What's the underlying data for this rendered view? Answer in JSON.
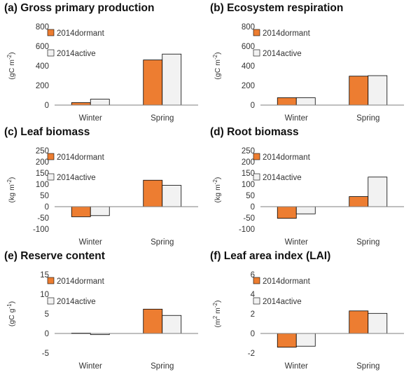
{
  "colors": {
    "dormant": "#ED7D31",
    "active": "#F2F2F2",
    "bar_stroke": "#000000",
    "axis": "#7F7F7F"
  },
  "chart_data": [
    {
      "id": "a",
      "type": "bar",
      "title": "(a) Gross primary production",
      "ylabel_main": "(gC m",
      "ylabel_sup": "-2",
      "ylabel_end": ")",
      "categories": [
        "Winter",
        "Spring"
      ],
      "series": [
        {
          "name": "2014dormant",
          "values": [
            25,
            460
          ]
        },
        {
          "name": "2014active",
          "values": [
            60,
            520
          ]
        }
      ],
      "ylim": [
        0,
        800
      ],
      "yticks": [
        0,
        200,
        400,
        600,
        800
      ],
      "grid": false,
      "legend": "top-left"
    },
    {
      "id": "b",
      "type": "bar",
      "title": "(b) Ecosystem respiration",
      "ylabel_main": "(gC m",
      "ylabel_sup": "-2",
      "ylabel_end": ")",
      "categories": [
        "Winter",
        "Spring"
      ],
      "series": [
        {
          "name": "2014dormant",
          "values": [
            75,
            295
          ]
        },
        {
          "name": "2014active",
          "values": [
            75,
            300
          ]
        }
      ],
      "ylim": [
        0,
        800
      ],
      "yticks": [
        0,
        200,
        400,
        600,
        800
      ],
      "grid": false,
      "legend": "top-left"
    },
    {
      "id": "c",
      "type": "bar",
      "title": "(c) Leaf biomass",
      "ylabel_main": "(kg m",
      "ylabel_sup": "-2",
      "ylabel_end": ")",
      "categories": [
        "Winter",
        "Spring"
      ],
      "series": [
        {
          "name": "2014dormant",
          "values": [
            -45,
            118
          ]
        },
        {
          "name": "2014active",
          "values": [
            -40,
            95
          ]
        }
      ],
      "ylim": [
        -100,
        250
      ],
      "yticks": [
        -100,
        -50,
        0,
        50,
        100,
        150,
        200,
        250
      ],
      "grid": false,
      "legend": "top-left"
    },
    {
      "id": "d",
      "type": "bar",
      "title": "(d) Root biomass",
      "ylabel_main": "(kg m",
      "ylabel_sup": "-2",
      "ylabel_end": ")",
      "categories": [
        "Winter",
        "Spring"
      ],
      "series": [
        {
          "name": "2014dormant",
          "values": [
            -52,
            45
          ]
        },
        {
          "name": "2014active",
          "values": [
            -32,
            132
          ]
        }
      ],
      "ylim": [
        -100,
        250
      ],
      "yticks": [
        -100,
        -50,
        0,
        50,
        100,
        150,
        200,
        250
      ],
      "grid": false,
      "legend": "top-left"
    },
    {
      "id": "e",
      "type": "bar",
      "title": "(e) Reserve content",
      "ylabel_main": "(gC g",
      "ylabel_sup": "-1",
      "ylabel_end": ")",
      "categories": [
        "Winter",
        "Spring"
      ],
      "series": [
        {
          "name": "2014dormant",
          "values": [
            0.1,
            6.2
          ]
        },
        {
          "name": "2014active",
          "values": [
            -0.3,
            4.6
          ]
        }
      ],
      "ylim": [
        -5,
        15
      ],
      "yticks": [
        -5,
        0,
        5,
        10,
        15
      ],
      "grid": false,
      "legend": "top-left"
    },
    {
      "id": "f",
      "type": "bar",
      "title": "(f) Leaf area index (LAI)",
      "ylabel_main": "(m",
      "ylabel_sup": "2",
      "ylabel_mid": " m",
      "ylabel_sup2": "-2",
      "ylabel_end": ")",
      "categories": [
        "Winter",
        "Spring"
      ],
      "series": [
        {
          "name": "2014dormant",
          "values": [
            -1.4,
            2.3
          ]
        },
        {
          "name": "2014active",
          "values": [
            -1.3,
            2.05
          ]
        }
      ],
      "ylim": [
        -2,
        6
      ],
      "yticks": [
        -2,
        0,
        2,
        4,
        6
      ],
      "grid": false,
      "legend": "top-left"
    }
  ]
}
